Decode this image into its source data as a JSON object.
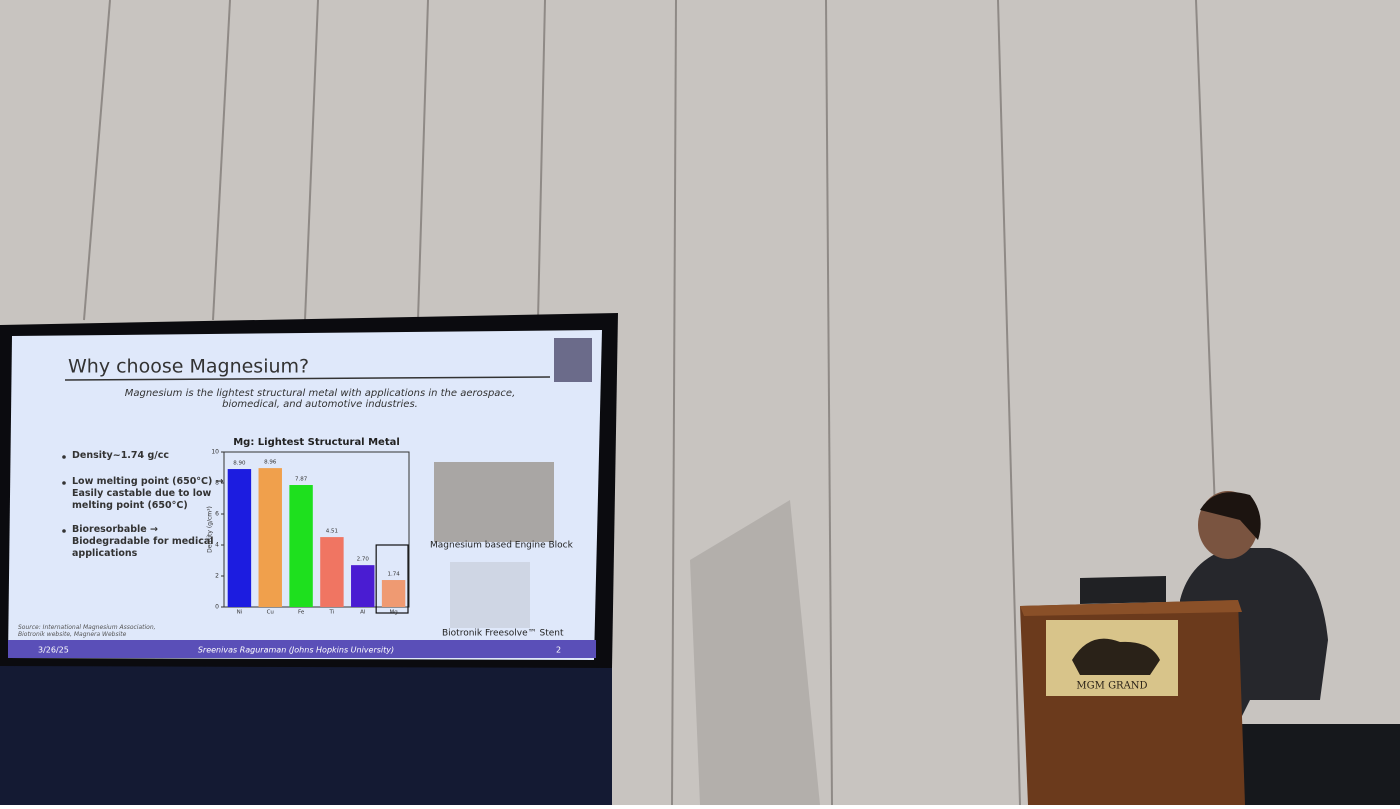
{
  "slide": {
    "title": "Why choose Magnesium?",
    "subtitle": "Magnesium is the lightest structural metal with applications in the aerospace, biomedical, and automotive industries.",
    "bullets": [
      "Density~1.74 g/cc",
      "Low melting point (650°C) → Easily castable due to low melting point (650°C)",
      "Bioresorbable → Biodegradable for medical applications"
    ],
    "captions": [
      "Magnesium based Engine Block",
      "Biotronik Freesolve™ Stent"
    ],
    "source": "Source: International Magnesium Association, Biotronik website, Magnera Website",
    "footer": {
      "date": "3/26/25",
      "author": "Sreenivas Raguraman (Johns Hopkins University)",
      "page": "2"
    }
  },
  "chart_data": {
    "type": "bar",
    "title": "Mg: Lightest Structural Metal",
    "y_label": "Density (g/cm³)",
    "categories": [
      "Ni",
      "Cu",
      "Fe",
      "Ti",
      "Al",
      "Mg"
    ],
    "values": [
      8.9,
      8.96,
      7.87,
      4.51,
      2.7,
      1.74
    ],
    "value_labels": [
      "8.90",
      "8.96",
      "7.87",
      "4.51",
      "2.70",
      "1.74"
    ],
    "colors": [
      "#1c1ce0",
      "#f0a04c",
      "#1ee01e",
      "#f07562",
      "#4a1cd2",
      "#ef9a72"
    ],
    "ylim": [
      0,
      10
    ],
    "yticks": [
      0,
      2,
      4,
      6,
      8,
      10
    ]
  },
  "podium": {
    "sign": "MGM GRAND"
  }
}
